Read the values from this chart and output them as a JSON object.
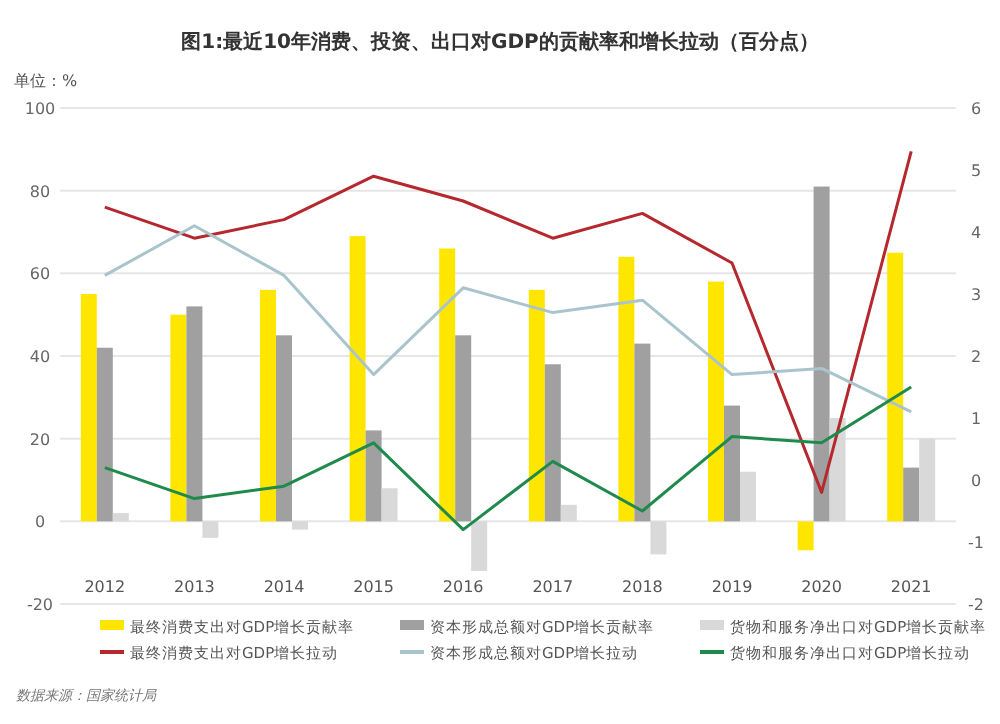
{
  "chart_data": {
    "type": "bar",
    "title": "图1:最近10年消费、投资、出口对GDP的贡献率和增长拉动（百分点）",
    "ylabel": "单位：%",
    "categories": [
      "2012",
      "2013",
      "2014",
      "2015",
      "2016",
      "2017",
      "2018",
      "2019",
      "2020",
      "2021"
    ],
    "series": [
      {
        "name": "最终消费支出对GDP增长贡献率",
        "color": "#ffe600",
        "values": [
          55,
          50,
          56,
          69,
          66,
          56,
          64,
          58,
          -7,
          65
        ]
      },
      {
        "name": "资本形成总额对GDP增长贡献率",
        "color": "#a0a0a0",
        "values": [
          42,
          52,
          45,
          22,
          45,
          38,
          43,
          28,
          81,
          13
        ]
      },
      {
        "name": "货物和服务净出口对GDP增长贡献率",
        "color": "#d9d9d9",
        "values": [
          2,
          -4,
          -2,
          8,
          -12,
          4,
          -8,
          12,
          25,
          20
        ]
      },
      {
        "name": "最终消费支出对GDP增长拉动",
        "type": "line",
        "axis": "y2",
        "color": "#b5282e",
        "values": [
          4.4,
          3.9,
          4.2,
          4.9,
          4.5,
          3.9,
          4.3,
          3.5,
          -0.2,
          5.3
        ]
      },
      {
        "name": "资本形成总额对GDP增长拉动",
        "type": "line",
        "axis": "y2",
        "color": "#a9c4cc",
        "values": [
          3.3,
          4.1,
          3.3,
          1.7,
          3.1,
          2.7,
          2.9,
          1.7,
          1.8,
          1.1
        ]
      },
      {
        "name": "货物和服务净出口对GDP增长拉动",
        "type": "line",
        "axis": "y2",
        "color": "#1f8a4c",
        "values": [
          0.2,
          -0.3,
          -0.1,
          0.6,
          -0.8,
          0.3,
          -0.5,
          0.7,
          0.6,
          1.5
        ]
      }
    ],
    "ylim": [
      -20,
      100
    ],
    "yticks": [
      -20,
      0,
      20,
      40,
      60,
      80,
      100
    ],
    "y2lim": [
      -2,
      6
    ],
    "y2ticks": [
      -2,
      -1,
      0,
      1,
      2,
      3,
      4,
      5,
      6
    ],
    "grid": "y",
    "legend": "bottom",
    "annotations": [
      "数据来源：国家统计局"
    ]
  }
}
